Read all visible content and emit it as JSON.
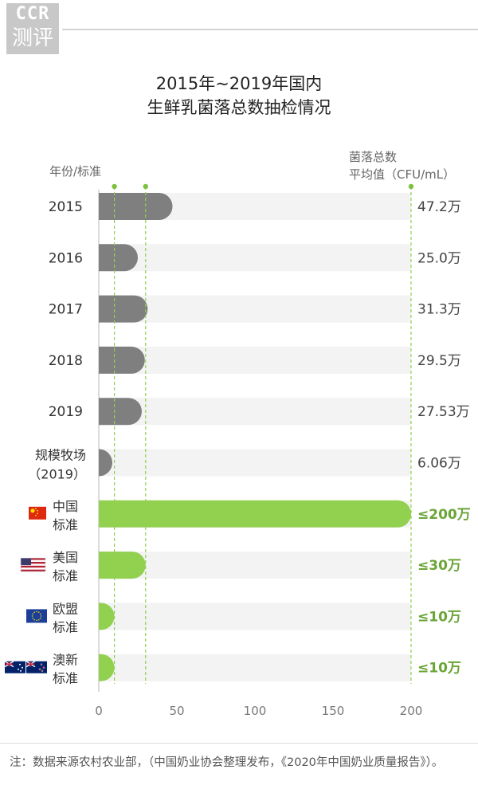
{
  "logo": {
    "line1": "CCR",
    "line2": "测评"
  },
  "chart_data": {
    "type": "bar",
    "orientation": "horizontal",
    "title_lines": [
      "2015年~2019年国内",
      "生鲜乳菌落总数抽检情况"
    ],
    "ylabel": "年份/标准",
    "value_label_lines": [
      "菌落总数",
      "平均值（CFU/mL）"
    ],
    "xlim": [
      0,
      200
    ],
    "xticks": [
      0,
      50,
      100,
      150,
      200
    ],
    "categories": [
      {
        "label_lines": [
          "2015"
        ],
        "value": 47.2,
        "value_label": "47.2万",
        "group": "sample"
      },
      {
        "label_lines": [
          "2016"
        ],
        "value": 25.0,
        "value_label": "25.0万",
        "group": "sample"
      },
      {
        "label_lines": [
          "2017"
        ],
        "value": 31.3,
        "value_label": "31.3万",
        "group": "sample"
      },
      {
        "label_lines": [
          "2018"
        ],
        "value": 29.5,
        "value_label": "29.5万",
        "group": "sample"
      },
      {
        "label_lines": [
          "2019"
        ],
        "value": 27.53,
        "value_label": "27.53万",
        "group": "sample"
      },
      {
        "label_lines": [
          "规模牧场",
          "（2019）"
        ],
        "value": 6.06,
        "value_label": "6.06万",
        "group": "sample"
      },
      {
        "label_lines": [
          "中国",
          "标准"
        ],
        "value": 200,
        "value_label": "≤200万",
        "group": "standard",
        "flag": "china-flag"
      },
      {
        "label_lines": [
          "美国",
          "标准"
        ],
        "value": 30,
        "value_label": "≤30万",
        "group": "standard",
        "flag": "us-flag"
      },
      {
        "label_lines": [
          "欧盟",
          "标准"
        ],
        "value": 10,
        "value_label": "≤10万",
        "group": "standard",
        "flag": "eu-flag"
      },
      {
        "label_lines": [
          "澳新",
          "标准"
        ],
        "value": 10,
        "value_label": "≤10万",
        "group": "standard",
        "flag": "anz-flag"
      }
    ],
    "reference_lines": [
      10,
      30,
      200
    ],
    "colors": {
      "sample": "#7f7f7f",
      "standard": "#92d050",
      "track": "#f3f3f3",
      "standard_text": "#6aa537"
    }
  },
  "note": "注：数据来源农村农业部，（中国奶业协会整理发布，《2020年中国奶业质量报告》）。"
}
